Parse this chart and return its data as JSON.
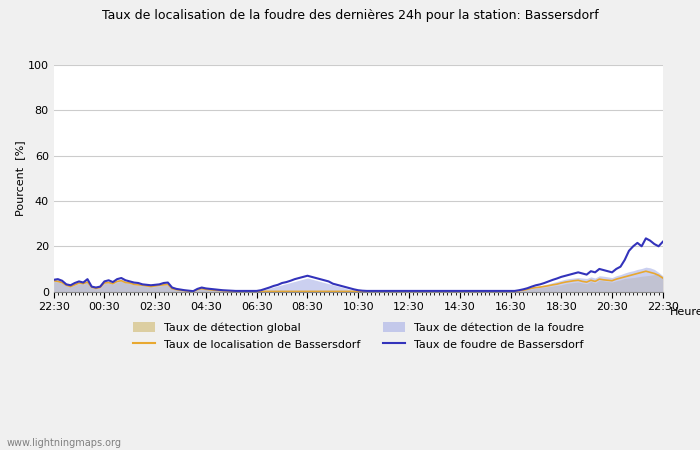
{
  "title": "Taux de localisation de la foudre des dernières 24h pour la station: Bassersdorf",
  "xlabel": "Heure",
  "ylabel": "Pourcent  [%]",
  "ylim": [
    0,
    100
  ],
  "yticks": [
    0,
    20,
    40,
    60,
    80,
    100
  ],
  "x_tick_labels": [
    "22:30",
    "00:30",
    "02:30",
    "04:30",
    "06:30",
    "08:30",
    "10:30",
    "12:30",
    "14:30",
    "16:30",
    "18:30",
    "20:30",
    "22:30"
  ],
  "background_color": "#f0f0f0",
  "plot_bg_color": "#ffffff",
  "grid_color": "#cccccc",
  "watermark": "www.lightningmaps.org",
  "legend": [
    {
      "label": "Taux de détection global",
      "color": "#d4c080",
      "type": "fill"
    },
    {
      "label": "Taux de localisation de Bassersdorf",
      "color": "#e8a830",
      "type": "line"
    },
    {
      "label": "Taux de détection de la foudre",
      "color": "#b0b8e8",
      "type": "fill"
    },
    {
      "label": "Taux de foudre de Bassersdorf",
      "color": "#3333bb",
      "type": "line"
    }
  ],
  "detection_global": [
    4.5,
    4.2,
    3.8,
    2.5,
    2.0,
    2.8,
    3.5,
    3.2,
    4.0,
    1.8,
    1.2,
    1.5,
    3.5,
    3.8,
    3.2,
    4.2,
    4.5,
    3.8,
    3.5,
    3.0,
    2.8,
    2.5,
    2.2,
    2.0,
    2.2,
    2.5,
    2.8,
    3.0,
    1.2,
    0.8,
    0.5,
    0.3,
    0.2,
    0.1,
    0.8,
    1.2,
    0.9,
    0.7,
    0.5,
    0.4,
    0.3,
    0.2,
    0.1,
    0.1,
    0.1,
    0.1,
    0.1,
    0.1,
    0.1,
    0.1,
    0.1,
    0.1,
    0.1,
    0.1,
    0.1,
    0.1,
    0.1,
    0.1,
    0.1,
    0.1,
    0.1,
    0.1,
    0.1,
    0.1,
    0.1,
    0.1,
    0.1,
    0.1,
    0.1,
    0.1,
    0.1,
    0.1,
    0.1,
    0.1,
    0.1,
    0.1,
    0.1,
    0.1,
    0.1,
    0.1,
    0.1,
    0.1,
    0.1,
    0.1,
    0.1,
    0.1,
    0.1,
    0.1,
    0.1,
    0.1,
    0.1,
    0.1,
    0.1,
    0.1,
    0.1,
    0.1,
    0.1,
    0.1,
    0.1,
    0.1,
    0.1,
    0.1,
    0.1,
    0.1,
    0.1,
    0.1,
    0.1,
    0.1,
    0.1,
    0.1,
    0.3,
    0.5,
    0.8,
    1.2,
    1.5,
    1.8,
    2.0,
    2.2,
    2.5,
    2.8,
    3.0,
    3.5,
    3.8,
    4.0,
    4.2,
    3.8,
    3.5,
    4.5,
    3.8,
    5.0,
    4.8,
    4.5,
    4.2,
    4.8,
    5.2,
    5.8,
    6.0,
    6.2,
    6.5,
    6.8,
    7.0,
    7.2,
    7.5,
    7.8,
    6.5
  ],
  "detection_foudre": [
    5.0,
    5.2,
    4.5,
    3.0,
    2.5,
    3.5,
    4.0,
    3.8,
    5.0,
    2.0,
    1.5,
    2.0,
    4.2,
    4.5,
    4.0,
    5.0,
    5.5,
    4.5,
    4.2,
    3.8,
    3.5,
    3.0,
    2.8,
    2.5,
    2.8,
    3.0,
    3.5,
    3.5,
    1.5,
    1.0,
    0.8,
    0.5,
    0.3,
    0.2,
    1.0,
    1.5,
    1.2,
    1.0,
    0.8,
    0.6,
    0.5,
    0.4,
    0.3,
    0.2,
    0.2,
    0.2,
    0.2,
    0.2,
    0.2,
    0.5,
    1.0,
    1.5,
    2.0,
    2.5,
    3.0,
    3.5,
    4.0,
    4.5,
    5.0,
    5.5,
    6.0,
    5.5,
    5.0,
    4.5,
    4.0,
    3.5,
    3.0,
    2.5,
    2.0,
    1.5,
    1.0,
    0.8,
    0.5,
    0.3,
    0.2,
    0.2,
    0.2,
    0.2,
    0.2,
    0.2,
    0.2,
    0.2,
    0.2,
    0.2,
    0.2,
    0.2,
    0.2,
    0.2,
    0.2,
    0.2,
    0.2,
    0.2,
    0.2,
    0.2,
    0.2,
    0.2,
    0.2,
    0.2,
    0.2,
    0.2,
    0.2,
    0.2,
    0.2,
    0.2,
    0.2,
    0.2,
    0.2,
    0.2,
    0.2,
    0.2,
    0.5,
    0.8,
    1.2,
    1.8,
    2.2,
    2.5,
    3.0,
    3.5,
    4.0,
    4.5,
    5.0,
    5.5,
    5.8,
    6.0,
    6.2,
    6.0,
    5.8,
    6.5,
    6.0,
    7.0,
    6.8,
    6.5,
    6.2,
    7.0,
    7.5,
    8.2,
    8.8,
    9.2,
    9.8,
    10.2,
    10.8,
    10.5,
    9.8,
    8.5,
    7.0
  ],
  "localisation_bassersdorf": [
    4.8,
    4.5,
    4.0,
    2.8,
    2.2,
    3.0,
    3.8,
    3.5,
    4.2,
    2.0,
    1.4,
    1.8,
    3.8,
    4.0,
    3.5,
    4.5,
    4.8,
    4.0,
    3.8,
    3.2,
    3.0,
    2.8,
    2.5,
    2.2,
    2.5,
    2.8,
    3.0,
    3.2,
    1.3,
    0.9,
    0.6,
    0.4,
    0.2,
    0.1,
    0.9,
    1.3,
    1.0,
    0.8,
    0.6,
    0.5,
    0.4,
    0.3,
    0.2,
    0.1,
    0.1,
    0.1,
    0.1,
    0.1,
    0.1,
    0.1,
    0.1,
    0.1,
    0.1,
    0.1,
    0.1,
    0.1,
    0.1,
    0.1,
    0.1,
    0.1,
    0.1,
    0.1,
    0.1,
    0.1,
    0.1,
    0.1,
    0.1,
    0.1,
    0.1,
    0.1,
    0.1,
    0.1,
    0.1,
    0.1,
    0.1,
    0.1,
    0.1,
    0.1,
    0.1,
    0.1,
    0.1,
    0.1,
    0.1,
    0.1,
    0.1,
    0.1,
    0.1,
    0.1,
    0.1,
    0.1,
    0.1,
    0.1,
    0.1,
    0.1,
    0.1,
    0.1,
    0.1,
    0.1,
    0.1,
    0.1,
    0.1,
    0.1,
    0.1,
    0.1,
    0.1,
    0.1,
    0.1,
    0.1,
    0.1,
    0.1,
    0.4,
    0.6,
    1.0,
    1.5,
    1.8,
    2.0,
    2.3,
    2.6,
    3.0,
    3.3,
    3.8,
    4.2,
    4.5,
    4.8,
    5.0,
    4.5,
    4.2,
    5.0,
    4.5,
    5.5,
    5.2,
    5.0,
    4.8,
    5.5,
    6.0,
    6.5,
    7.0,
    7.5,
    8.0,
    8.5,
    9.0,
    8.5,
    8.0,
    7.2,
    6.0
  ],
  "foudre_bassersdorf": [
    5.2,
    5.5,
    4.8,
    3.2,
    2.8,
    3.8,
    4.5,
    4.0,
    5.5,
    2.2,
    1.8,
    2.2,
    4.5,
    5.0,
    4.2,
    5.5,
    6.0,
    5.0,
    4.5,
    4.0,
    3.8,
    3.2,
    3.0,
    2.8,
    3.0,
    3.2,
    3.8,
    4.0,
    1.8,
    1.2,
    0.9,
    0.6,
    0.4,
    0.2,
    1.2,
    1.8,
    1.4,
    1.2,
    1.0,
    0.8,
    0.6,
    0.5,
    0.4,
    0.3,
    0.3,
    0.3,
    0.3,
    0.3,
    0.3,
    0.6,
    1.2,
    1.8,
    2.5,
    3.0,
    3.8,
    4.2,
    4.8,
    5.5,
    6.0,
    6.5,
    7.0,
    6.5,
    6.0,
    5.5,
    5.0,
    4.5,
    3.5,
    3.0,
    2.5,
    2.0,
    1.5,
    1.0,
    0.6,
    0.4,
    0.3,
    0.3,
    0.3,
    0.3,
    0.3,
    0.3,
    0.3,
    0.3,
    0.3,
    0.3,
    0.3,
    0.3,
    0.3,
    0.3,
    0.3,
    0.3,
    0.3,
    0.3,
    0.3,
    0.3,
    0.3,
    0.3,
    0.3,
    0.3,
    0.3,
    0.3,
    0.3,
    0.3,
    0.3,
    0.3,
    0.3,
    0.3,
    0.3,
    0.3,
    0.3,
    0.3,
    0.6,
    1.0,
    1.5,
    2.2,
    2.8,
    3.2,
    3.8,
    4.5,
    5.2,
    5.8,
    6.5,
    7.0,
    7.5,
    8.0,
    8.5,
    8.0,
    7.5,
    9.0,
    8.5,
    10.0,
    9.5,
    9.0,
    8.5,
    10.0,
    11.0,
    14.0,
    18.0,
    20.0,
    21.5,
    20.0,
    23.5,
    22.5,
    21.0,
    20.0,
    22.0
  ]
}
